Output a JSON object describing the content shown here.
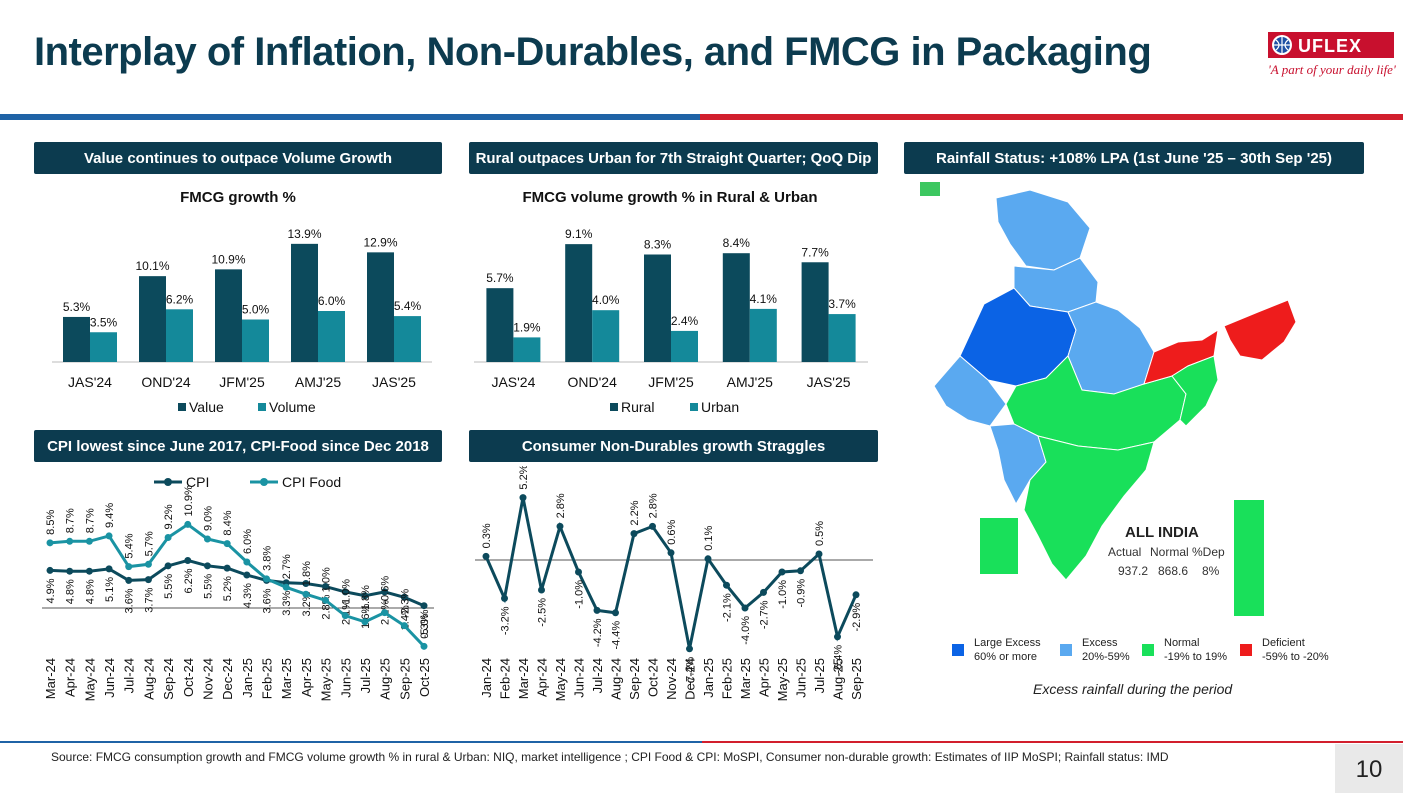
{
  "header": {
    "title": "Interplay of Inflation, Non-Durables, and FMCG in Packaging"
  },
  "logo": {
    "brand": "UFLEX",
    "tagline": "'A part of your daily life'"
  },
  "panels": {
    "p1_title": "Value continues to outpace Volume Growth",
    "p2_title": "Rural outpaces Urban for 7th Straight Quarter; QoQ Dip",
    "p3_title": "Rainfall Status: +108% LPA (1st June '25 – 30th Sep '25)",
    "p4_title": "CPI lowest since June 2017, CPI-Food since Dec 2018",
    "p5_title": "Consumer Non-Durables growth Straggles"
  },
  "map": {
    "all_india_title": "ALL INDIA",
    "headers": [
      "Actual",
      "Normal",
      "%Dep"
    ],
    "values": [
      "937.2",
      "868.6",
      "8%"
    ],
    "legend": [
      {
        "line1": "Large Excess",
        "line2": "60% or more",
        "color": "#0b63e5"
      },
      {
        "line1": "Excess",
        "line2": "20%-59%",
        "color": "#5aa9f0"
      },
      {
        "line1": "Normal",
        "line2": "-19% to 19%",
        "color": "#19e05a"
      },
      {
        "line1": "Deficient",
        "line2": "-59% to -20%",
        "color": "#ee1c1c"
      }
    ],
    "caption": "Excess rainfall during the period"
  },
  "footer": {
    "source": "Source: FMCG consumption growth and FMCG volume growth % in rural & Urban: NIQ, market intelligence ; CPI Food & CPI: MoSPI, Consumer non-durable growth: Estimates of IIP MoSPI; Rainfall status: IMD",
    "page_number": "10"
  },
  "chart_data": [
    {
      "type": "bar",
      "title": "FMCG growth %",
      "categories": [
        "JAS'24",
        "OND'24",
        "JFM'25",
        "AMJ'25",
        "JAS'25"
      ],
      "series": [
        {
          "name": "Value",
          "values": [
            5.3,
            10.1,
            10.9,
            13.9,
            12.9
          ],
          "color": "#0c4a5c"
        },
        {
          "name": "Volume",
          "values": [
            3.5,
            6.2,
            5.0,
            6.0,
            5.4
          ],
          "color": "#14899a"
        }
      ],
      "ylim": [
        0,
        16
      ]
    },
    {
      "type": "bar",
      "title": "FMCG volume growth % in Rural & Urban",
      "categories": [
        "JAS'24",
        "OND'24",
        "JFM'25",
        "AMJ'25",
        "JAS'25"
      ],
      "series": [
        {
          "name": "Rural",
          "values": [
            5.7,
            9.1,
            8.3,
            8.4,
            7.7
          ],
          "color": "#0c4a5c"
        },
        {
          "name": "Urban",
          "values": [
            1.9,
            4.0,
            2.4,
            4.1,
            3.7
          ],
          "color": "#14899a"
        }
      ],
      "ylim": [
        0,
        10.5
      ]
    },
    {
      "type": "line",
      "categories": [
        "Mar-24",
        "Apr-24",
        "May-24",
        "Jun-24",
        "Jul-24",
        "Aug-24",
        "Sep-24",
        "Oct-24",
        "Nov-24",
        "Dec-24",
        "Jan-25",
        "Feb-25",
        "Mar-25",
        "Apr-25",
        "May-25",
        "Jun-25",
        "Jul-25",
        "Aug-25",
        "Sep-25",
        "Oct-25"
      ],
      "series": [
        {
          "name": "CPI",
          "values": [
            4.9,
            4.8,
            4.8,
            5.1,
            3.6,
            3.7,
            5.5,
            6.2,
            5.5,
            5.2,
            4.3,
            3.6,
            3.3,
            3.2,
            2.8,
            2.1,
            1.6,
            2.1,
            1.4,
            0.3
          ],
          "color": "#0c4a5c"
        },
        {
          "name": "CPI Food",
          "values": [
            8.5,
            8.7,
            8.7,
            9.4,
            5.4,
            5.7,
            9.2,
            10.9,
            9.0,
            8.4,
            6.0,
            3.8,
            2.7,
            1.8,
            1.0,
            -1.0,
            -1.8,
            -0.6,
            -2.3,
            -5.0
          ],
          "color": "#1a93a3"
        }
      ],
      "ylim": [
        -6,
        12
      ]
    },
    {
      "type": "line",
      "categories": [
        "Jan-24",
        "Feb-24",
        "Mar-24",
        "Apr-24",
        "May-24",
        "Jun-24",
        "Jul-24",
        "Aug-24",
        "Sep-24",
        "Oct-24",
        "Nov-24",
        "Dec-24",
        "Jan-25",
        "Feb-25",
        "Mar-25",
        "Apr-25",
        "May-25",
        "Jun-25",
        "Jul-25",
        "Aug-25",
        "Sep-25"
      ],
      "series": [
        {
          "name": "Consumer Non-Durables",
          "values": [
            0.3,
            -3.2,
            5.2,
            -2.5,
            2.8,
            -1.0,
            -4.2,
            -4.4,
            2.2,
            2.8,
            0.6,
            -7.4,
            0.1,
            -2.1,
            -4.0,
            -2.7,
            -1.0,
            -0.9,
            0.5,
            -6.4,
            -2.9
          ],
          "color": "#0c4a5c"
        }
      ],
      "ylim": [
        -8,
        6
      ]
    }
  ]
}
